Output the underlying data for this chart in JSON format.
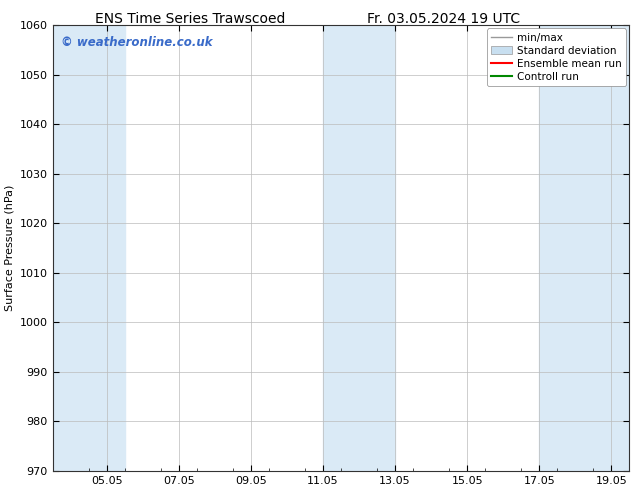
{
  "title_left": "ENS Time Series Trawscoed",
  "title_right": "Fr. 03.05.2024 19 UTC",
  "ylabel": "Surface Pressure (hPa)",
  "ylim": [
    970,
    1060
  ],
  "yticks": [
    970,
    980,
    990,
    1000,
    1010,
    1020,
    1030,
    1040,
    1050,
    1060
  ],
  "xtick_labels": [
    "05.05",
    "07.05",
    "09.05",
    "11.05",
    "13.05",
    "15.05",
    "17.05",
    "19.05"
  ],
  "xtick_positions": [
    1.5,
    3.5,
    5.5,
    7.5,
    9.5,
    11.5,
    13.5,
    15.5
  ],
  "xlim": [
    0,
    16
  ],
  "shaded_bands": [
    {
      "x_start": 0.0,
      "x_end": 2.0
    },
    {
      "x_start": 7.5,
      "x_end": 9.5
    },
    {
      "x_start": 13.5,
      "x_end": 16.0
    }
  ],
  "shade_color": "#daeaf6",
  "watermark": "© weatheronline.co.uk",
  "watermark_color": "#3a6bc9",
  "legend_entries": [
    {
      "label": "min/max",
      "color": "#aaaaaa",
      "type": "errorbar"
    },
    {
      "label": "Standard deviation",
      "color": "#c8dff0",
      "type": "band"
    },
    {
      "label": "Ensemble mean run",
      "color": "#ff0000",
      "type": "line"
    },
    {
      "label": "Controll run",
      "color": "#008800",
      "type": "line"
    }
  ],
  "bg_color": "#ffffff",
  "grid_color": "#bbbbbb",
  "title_fontsize": 10,
  "axis_fontsize": 8,
  "tick_fontsize": 8,
  "legend_fontsize": 7.5
}
